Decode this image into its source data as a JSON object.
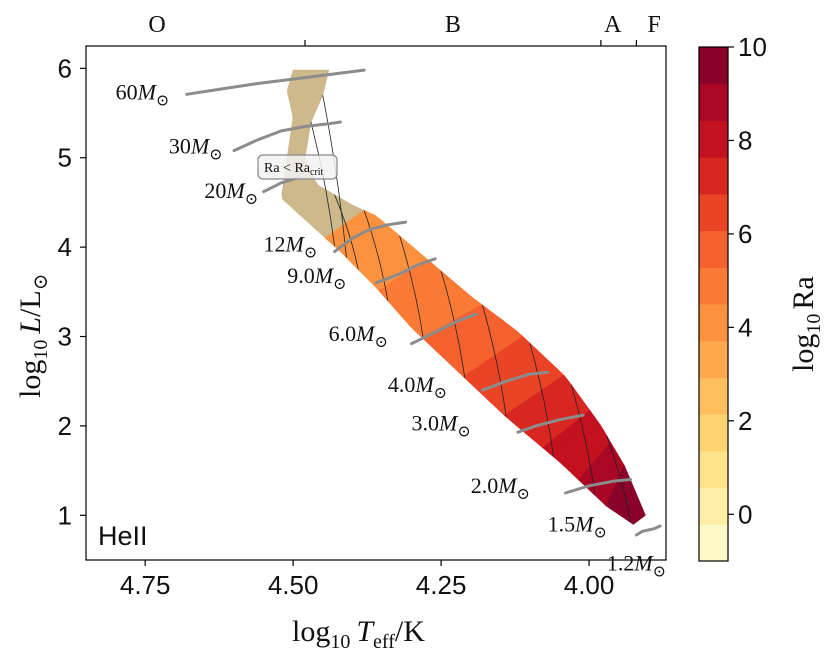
{
  "chart_data": {
    "type": "heatmap",
    "title": "",
    "xlabel_parts": {
      "base": "log",
      "sub": "10",
      "var": "T",
      "varsub": "eff",
      "unit": "/K"
    },
    "ylabel_parts": {
      "base": "log",
      "sub": "10",
      "var": "L",
      "unit": "/L",
      "sun": "⊙"
    },
    "xlim": [
      4.85,
      3.87
    ],
    "ylim": [
      0.5,
      6.25
    ],
    "x_ticks": [
      4.75,
      4.5,
      4.25,
      4.0
    ],
    "x_tick_labels": [
      "4.75",
      "4.50",
      "4.25",
      "4.00"
    ],
    "y_ticks": [
      1,
      2,
      3,
      4,
      5,
      6
    ],
    "y_tick_labels": [
      "1",
      "2",
      "3",
      "4",
      "5",
      "6"
    ],
    "spectral_classes": [
      {
        "label": "O",
        "x": 4.73
      },
      {
        "label": "B",
        "x": 4.23
      },
      {
        "label": "A",
        "x": 3.96
      },
      {
        "label": "F",
        "x": 3.89
      }
    ],
    "spectral_boundaries": [
      4.48,
      3.98,
      3.92
    ],
    "panel_label": "HeII",
    "region_label": {
      "text_main": "Ra < Ra",
      "text_sub": "crit"
    },
    "colorbar": {
      "label_base": "log",
      "label_sub": "10",
      "label_var": "Ra",
      "range": [
        -1,
        10
      ],
      "ticks": [
        0,
        2,
        4,
        6,
        8,
        10
      ],
      "tick_labels": [
        "0",
        "2",
        "4",
        "6",
        "8",
        "10"
      ],
      "colors": [
        "#fff9c8",
        "#ffefa6",
        "#fee38a",
        "#fed472",
        "#febf5c",
        "#fda94c",
        "#fc9240",
        "#fb7b36",
        "#f5612f",
        "#ea4427",
        "#d82720",
        "#c2111f",
        "#a90724",
        "#88022a"
      ]
    },
    "band": {
      "upper": [
        [
          4.44,
          5.98
        ],
        [
          4.45,
          5.7
        ],
        [
          4.47,
          5.4
        ],
        [
          4.48,
          5.0
        ],
        [
          4.46,
          4.7
        ],
        [
          4.4,
          4.47
        ],
        [
          4.36,
          4.35
        ],
        [
          4.28,
          3.9
        ],
        [
          4.2,
          3.45
        ],
        [
          4.12,
          3.05
        ],
        [
          4.04,
          2.55
        ],
        [
          3.98,
          2.0
        ],
        [
          3.94,
          1.55
        ],
        [
          3.905,
          1.0
        ]
      ],
      "lower": [
        [
          3.925,
          0.9
        ],
        [
          3.97,
          1.1
        ],
        [
          4.05,
          1.6
        ],
        [
          4.14,
          2.1
        ],
        [
          4.22,
          2.6
        ],
        [
          4.3,
          3.1
        ],
        [
          4.36,
          3.55
        ],
        [
          4.42,
          3.95
        ],
        [
          4.47,
          4.25
        ],
        [
          4.52,
          4.55
        ],
        [
          4.51,
          5.0
        ],
        [
          4.5,
          5.45
        ],
        [
          4.51,
          5.75
        ],
        [
          4.5,
          5.98
        ]
      ],
      "stable_below_x": 4.41,
      "stable_color": "#cdb98c",
      "color_stops": [
        [
          4.4,
          4.0
        ],
        [
          4.3,
          4.6
        ],
        [
          4.2,
          5.6
        ],
        [
          4.1,
          6.8
        ],
        [
          4.0,
          8.2
        ],
        [
          3.94,
          9.5
        ]
      ]
    },
    "contours_x": [
      4.47,
      4.45,
      4.43,
      4.41,
      4.36,
      4.3,
      4.23,
      4.16,
      4.08,
      4.01,
      3.95
    ],
    "tracks": [
      {
        "mass": "60",
        "label": "60M",
        "sun": "⊙",
        "points": [
          [
            4.68,
            5.71
          ],
          [
            4.62,
            5.77
          ],
          [
            4.56,
            5.83
          ],
          [
            4.5,
            5.88
          ],
          [
            4.44,
            5.93
          ],
          [
            4.38,
            5.98
          ]
        ],
        "label_at": [
          4.8,
          5.65
        ]
      },
      {
        "mass": "30",
        "label": "30M",
        "sun": "⊙",
        "points": [
          [
            4.6,
            5.08
          ],
          [
            4.56,
            5.2
          ],
          [
            4.52,
            5.3
          ],
          [
            4.48,
            5.35
          ],
          [
            4.44,
            5.38
          ],
          [
            4.42,
            5.4
          ]
        ],
        "label_at": [
          4.71,
          5.05
        ]
      },
      {
        "mass": "20",
        "label": "20M",
        "sun": "⊙",
        "points": [
          [
            4.55,
            4.62
          ],
          [
            4.52,
            4.72
          ],
          [
            4.49,
            4.78
          ]
        ],
        "label_at": [
          4.65,
          4.55
        ]
      },
      {
        "mass": "12",
        "label": "12M",
        "sun": "⊙",
        "points": [
          [
            4.43,
            3.95
          ],
          [
            4.4,
            4.1
          ],
          [
            4.37,
            4.2
          ],
          [
            4.34,
            4.25
          ],
          [
            4.31,
            4.28
          ]
        ],
        "label_at": [
          4.55,
          3.95
        ]
      },
      {
        "mass": "9.0",
        "label": "9.0M",
        "sun": "⊙",
        "points": [
          [
            4.36,
            3.6
          ],
          [
            4.32,
            3.7
          ],
          [
            4.29,
            3.8
          ],
          [
            4.26,
            3.87
          ]
        ],
        "label_at": [
          4.51,
          3.6
        ]
      },
      {
        "mass": "6.0",
        "label": "6.0M",
        "sun": "⊙",
        "points": [
          [
            4.3,
            2.92
          ],
          [
            4.26,
            3.05
          ],
          [
            4.22,
            3.18
          ],
          [
            4.19,
            3.25
          ]
        ],
        "label_at": [
          4.44,
          2.95
        ]
      },
      {
        "mass": "4.0",
        "label": "4.0M",
        "sun": "⊙",
        "points": [
          [
            4.18,
            2.4
          ],
          [
            4.14,
            2.5
          ],
          [
            4.1,
            2.58
          ],
          [
            4.07,
            2.6
          ]
        ],
        "label_at": [
          4.34,
          2.38
        ]
      },
      {
        "mass": "3.0",
        "label": "3.0M",
        "sun": "⊙",
        "points": [
          [
            4.12,
            1.93
          ],
          [
            4.09,
            2.0
          ],
          [
            4.05,
            2.07
          ],
          [
            4.01,
            2.12
          ]
        ],
        "label_at": [
          4.3,
          1.95
        ]
      },
      {
        "mass": "2.0",
        "label": "2.0M",
        "sun": "⊙",
        "points": [
          [
            4.04,
            1.25
          ],
          [
            4.0,
            1.33
          ],
          [
            3.96,
            1.38
          ],
          [
            3.93,
            1.4
          ]
        ],
        "label_at": [
          4.2,
          1.25
        ]
      },
      {
        "mass": "1.5",
        "label": "1.5M",
        "sun": "⊙",
        "points": [
          [
            3.92,
            0.78
          ],
          [
            3.91,
            0.82
          ],
          [
            3.89,
            0.85
          ],
          [
            3.88,
            0.88
          ]
        ],
        "label_at": [
          4.07,
          0.82
        ]
      },
      {
        "mass": "1.2",
        "label": "1.2M",
        "sun": "⊙",
        "points": [],
        "label_at": [
          3.97,
          0.38
        ]
      }
    ]
  }
}
